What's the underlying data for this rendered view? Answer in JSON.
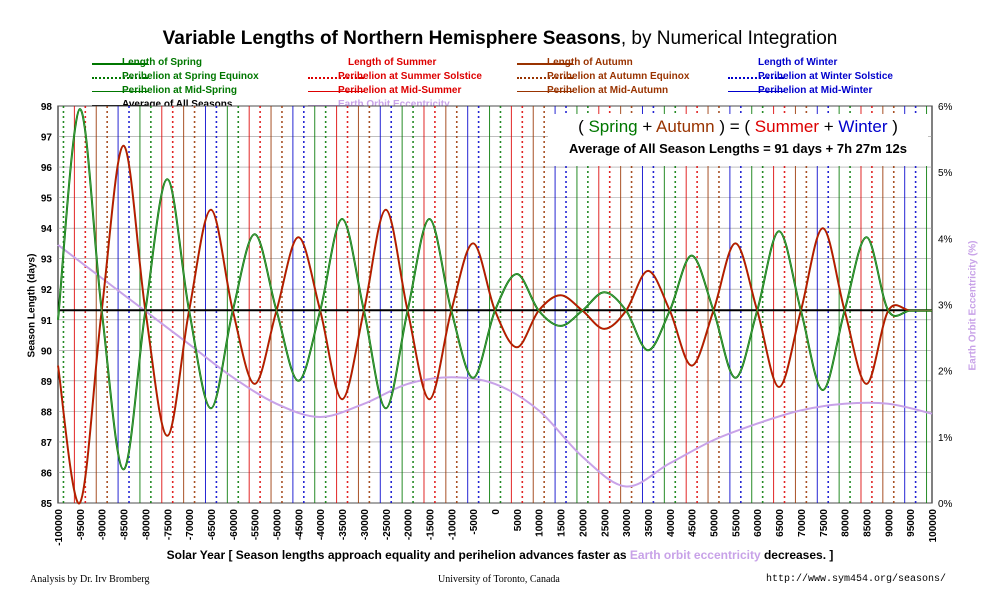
{
  "title_bold": "Variable Lengths of Northern Hemisphere Seasons",
  "title_rest": ", by Numerical Integration",
  "legend": [
    {
      "label": "Length of Spring",
      "color": "#007700",
      "style": "solid"
    },
    {
      "label": "Perihelion at Spring Equinox",
      "color": "#007700",
      "style": "dotted"
    },
    {
      "label": "Perihelion at Mid-Spring",
      "color": "#007700",
      "style": "thin"
    },
    {
      "label": "Average of All Seasons",
      "color": "#000000",
      "style": "solid"
    },
    {
      "label": "Length of Summer",
      "color": "#dd0000",
      "style": "solid"
    },
    {
      "label": "Perihelion at Summer Solstice",
      "color": "#dd0000",
      "style": "dotted"
    },
    {
      "label": "Perihelion at Mid-Summer",
      "color": "#dd0000",
      "style": "thin"
    },
    {
      "label": "Earth Orbit Eccentricity",
      "color": "#c8a2e8",
      "style": "solid"
    },
    {
      "label": "Length of Autumn",
      "color": "#993300",
      "style": "solid"
    },
    {
      "label": "Perihelion at Autumn Equinox",
      "color": "#993300",
      "style": "dotted"
    },
    {
      "label": "Perihelion at Mid-Autumn",
      "color": "#993300",
      "style": "thin"
    },
    {
      "label": "Length of Winter",
      "color": "#0000cc",
      "style": "solid"
    },
    {
      "label": "Perihelion at Winter Solstice",
      "color": "#0000cc",
      "style": "dotted"
    },
    {
      "label": "Perihelion at Mid-Winter",
      "color": "#0000cc",
      "style": "thin"
    }
  ],
  "equation": {
    "open": "( ",
    "spring": "Spring",
    "plus1": " + ",
    "autumn": "Autumn",
    "mid": " ) = ( ",
    "summer": "Summer",
    "plus2": " + ",
    "winter": "Winter",
    "close": " )"
  },
  "average_text": "Average of All Season Lengths = 91 days + 7h 27m 12s",
  "xlabel_pre": "Solar Year [ Season lengths approach equality and perihelion advances faster as ",
  "xlabel_hl": "Earth orbit eccentricity",
  "xlabel_post": " decreases. ]",
  "footer": {
    "left": "Analysis by Dr. Irv Bromberg",
    "center": "University of Toronto, Canada",
    "right": "http://www.sym454.org/seasons/"
  },
  "colors": {
    "spring": "#007700",
    "summer": "#dd0000",
    "autumn": "#993300",
    "winter": "#0000cc",
    "eccentricity": "#c8a2e8",
    "average": "#000000",
    "grid": "#888888"
  },
  "chart_data": {
    "type": "line",
    "xlabel": "Solar Year [ Season lengths approach equality and perihelion advances faster as Earth orbit eccentricity decreases. ]",
    "ylabel": "Season Length (days)",
    "y2label": "Earth Orbit Eccentricity (%)",
    "xlim": [
      -100000,
      100000
    ],
    "ylim": [
      85,
      98
    ],
    "y2lim": [
      0,
      6
    ],
    "x_ticks": [
      -100000,
      -95000,
      -90000,
      -85000,
      -80000,
      -75000,
      -70000,
      -65000,
      -60000,
      -55000,
      -50000,
      -45000,
      -40000,
      -35000,
      -30000,
      -25000,
      -20000,
      -15000,
      -10000,
      -5000,
      0,
      5000,
      10000,
      15000,
      20000,
      25000,
      30000,
      35000,
      40000,
      45000,
      50000,
      55000,
      60000,
      65000,
      70000,
      75000,
      80000,
      85000,
      90000,
      95000,
      100000
    ],
    "y_ticks": [
      85,
      86,
      87,
      88,
      89,
      90,
      91,
      92,
      93,
      94,
      95,
      96,
      97,
      98
    ],
    "y2_ticks": [
      "0%",
      "1%",
      "2%",
      "3%",
      "4%",
      "5%",
      "6%"
    ],
    "average_days": 91.31,
    "series": [
      {
        "name": "Length of Spring",
        "x": [
          -100000,
          -95000,
          -90000,
          -85000,
          -80000,
          -75000,
          -70000,
          -65000,
          -60000,
          -55000,
          -50000,
          -45000,
          -40000,
          -35000,
          -30000,
          -25000,
          -20000,
          -15000,
          -10000,
          -5000,
          0,
          5000,
          10000,
          15000,
          20000,
          25000,
          30000,
          35000,
          40000,
          45000,
          50000,
          55000,
          60000,
          65000,
          70000,
          75000,
          80000,
          85000,
          90000,
          95000,
          100000
        ],
        "values": [
          91.0,
          97.9,
          91.3,
          86.1,
          91.3,
          95.6,
          91.3,
          88.1,
          91.3,
          93.8,
          91.3,
          89.0,
          91.3,
          94.3,
          91.3,
          88.1,
          91.3,
          94.3,
          91.3,
          89.1,
          91.3,
          92.5,
          91.3,
          90.8,
          91.3,
          91.9,
          91.3,
          90.0,
          91.3,
          93.1,
          91.3,
          89.1,
          91.3,
          93.9,
          91.3,
          88.7,
          91.3,
          93.7,
          91.3,
          91.3,
          91.3
        ]
      },
      {
        "name": "Length of Autumn",
        "x": [
          -100000,
          -95000,
          -90000,
          -85000,
          -80000,
          -75000,
          -70000,
          -65000,
          -60000,
          -55000,
          -50000,
          -45000,
          -40000,
          -35000,
          -30000,
          -25000,
          -20000,
          -15000,
          -10000,
          -5000,
          0,
          5000,
          10000,
          15000,
          20000,
          25000,
          30000,
          35000,
          40000,
          45000,
          50000,
          55000,
          60000,
          65000,
          70000,
          75000,
          80000,
          85000,
          90000,
          95000,
          100000
        ],
        "values": [
          89.5,
          85.0,
          91.3,
          96.7,
          91.3,
          87.2,
          91.3,
          94.6,
          91.3,
          88.9,
          91.3,
          93.7,
          91.3,
          88.4,
          91.3,
          94.6,
          91.3,
          88.4,
          91.3,
          93.5,
          91.3,
          90.1,
          91.3,
          91.8,
          91.3,
          90.7,
          91.3,
          92.6,
          91.3,
          89.5,
          91.3,
          93.5,
          91.3,
          88.8,
          91.3,
          94.0,
          91.3,
          88.9,
          91.3,
          91.3,
          91.3
        ]
      },
      {
        "name": "Earth Orbit Eccentricity",
        "x": [
          -100000,
          -90000,
          -80000,
          -70000,
          -60000,
          -50000,
          -40000,
          -30000,
          -20000,
          -10000,
          0,
          10000,
          20000,
          30000,
          40000,
          50000,
          60000,
          70000,
          80000,
          90000,
          100000
        ],
        "values": [
          3.9,
          3.4,
          2.9,
          2.4,
          1.9,
          1.5,
          1.3,
          1.5,
          1.8,
          1.9,
          1.8,
          1.4,
          0.7,
          0.25,
          0.6,
          0.95,
          1.2,
          1.4,
          1.5,
          1.5,
          1.35
        ]
      }
    ]
  }
}
